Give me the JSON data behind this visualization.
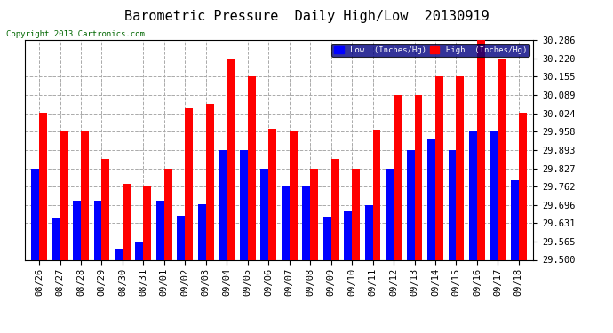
{
  "title": "Barometric Pressure  Daily High/Low  20130919",
  "copyright": "Copyright 2013 Cartronics.com",
  "legend_low": "Low  (Inches/Hg)",
  "legend_high": "High  (Inches/Hg)",
  "categories": [
    "08/26",
    "08/27",
    "08/28",
    "08/29",
    "08/30",
    "08/31",
    "09/01",
    "09/02",
    "09/03",
    "09/04",
    "09/05",
    "09/06",
    "09/07",
    "09/08",
    "09/09",
    "09/10",
    "09/11",
    "09/12",
    "09/13",
    "09/14",
    "09/15",
    "09/16",
    "09/17",
    "09/18"
  ],
  "low_values": [
    29.827,
    29.65,
    29.71,
    29.71,
    29.54,
    29.565,
    29.71,
    29.656,
    29.7,
    29.893,
    29.893,
    29.827,
    29.762,
    29.762,
    29.655,
    29.672,
    29.695,
    29.827,
    29.893,
    29.93,
    29.893,
    29.958,
    29.958,
    29.785
  ],
  "high_values": [
    30.024,
    29.958,
    29.958,
    29.862,
    29.77,
    29.762,
    29.827,
    30.04,
    30.057,
    30.22,
    30.155,
    29.97,
    29.958,
    29.827,
    29.862,
    29.827,
    29.965,
    30.09,
    30.089,
    30.155,
    30.155,
    30.286,
    30.22,
    30.024
  ],
  "ylim_low": 29.5,
  "ylim_high": 30.286,
  "yticks": [
    29.5,
    29.565,
    29.631,
    29.696,
    29.762,
    29.827,
    29.893,
    29.958,
    30.024,
    30.089,
    30.155,
    30.22,
    30.286
  ],
  "low_color": "#0000ff",
  "high_color": "#ff0000",
  "background_color": "#ffffff",
  "grid_color": "#aaaaaa",
  "title_fontsize": 11,
  "tick_fontsize": 7.5,
  "bar_width": 0.38
}
